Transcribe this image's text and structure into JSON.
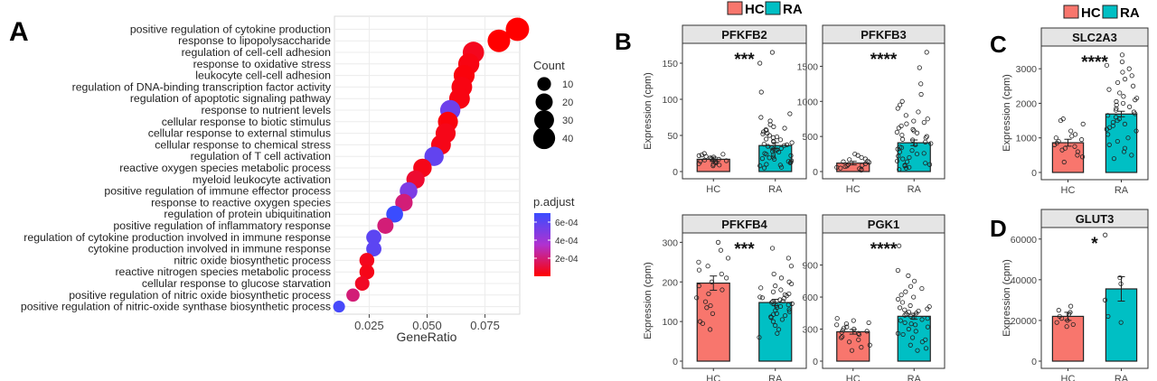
{
  "panel_labels": {
    "a": "A",
    "b": "B",
    "c": "C",
    "d": "D"
  },
  "legend_groups": {
    "hc_label": "HC",
    "ra_label": "RA",
    "hc_color": "#F8766D",
    "ra_color": "#00BFC4"
  },
  "chart_data": [
    {
      "type": "scatter",
      "panel": "A",
      "xlabel": "GeneRatio",
      "xlim": [
        0.01,
        0.09
      ],
      "x_ticks": [
        "0.025",
        "0.050",
        "0.075"
      ],
      "x_tick_values": [
        0.025,
        0.05,
        0.075
      ],
      "grid": true,
      "categories": [
        "positive regulation of cytokine production",
        "response to lipopolysaccharide",
        "regulation of cell-cell adhesion",
        "response to oxidative stress",
        "leukocyte cell-cell adhesion",
        "regulation of DNA-binding transcription factor activity",
        "regulation of apoptotic signaling pathway",
        "response to nutrient levels",
        "cellular response to biotic stimulus",
        "cellular response to external stimulus",
        "cellular response to chemical stress",
        "regulation of T cell activation",
        "reactive oxygen species metabolic process",
        "myeloid leukocyte activation",
        "positive regulation of immune effector process",
        "response to reactive oxygen species",
        "regulation of protein ubiquitination",
        "positive regulation of inflammatory response",
        "regulation of cytokine production involved in immune response",
        "cytokine production involved in immune response",
        "nitric oxide biosynthetic process",
        "reactive nitrogen species metabolic process",
        "cellular response to glucose starvation",
        "positive regulation of nitric oxide biosynthetic process",
        "positive regulation of nitric-oxide synthase biosynthetic process"
      ],
      "gene_ratio": [
        0.089,
        0.081,
        0.07,
        0.068,
        0.066,
        0.065,
        0.064,
        0.06,
        0.059,
        0.058,
        0.056,
        0.053,
        0.048,
        0.045,
        0.042,
        0.04,
        0.036,
        0.032,
        0.027,
        0.027,
        0.024,
        0.024,
        0.022,
        0.018,
        0.012
      ],
      "count": [
        47,
        43,
        37,
        36,
        35,
        34,
        34,
        32,
        31,
        31,
        30,
        28,
        25,
        24,
        22,
        21,
        19,
        17,
        14,
        14,
        13,
        13,
        12,
        9,
        6
      ],
      "p_adjust": [
        0.0,
        0.0,
        5e-05,
        3e-05,
        2e-05,
        3e-05,
        3e-05,
        0.00055,
        2e-05,
        4e-05,
        4e-05,
        0.00058,
        4e-05,
        8e-05,
        0.0005,
        0.0002,
        0.0007,
        0.0002,
        0.0006,
        0.0006,
        5e-05,
        4e-05,
        6e-05,
        0.0002,
        0.00066
      ],
      "size_legend": {
        "title": "Count",
        "values": [
          10,
          20,
          30,
          40
        ],
        "labels": [
          "10",
          "20",
          "30",
          "40"
        ]
      },
      "color_legend": {
        "title": "p.adjust",
        "ticks": [
          "6e-04",
          "4e-04",
          "2e-04"
        ],
        "tick_values": [
          0.0006,
          0.0004,
          0.0002
        ],
        "range": [
          0.0,
          0.0007
        ],
        "low_color": "#FF0000",
        "high_color": "#3A4CFF"
      },
      "legend_position": "right"
    },
    {
      "type": "bar",
      "panel": "B",
      "title": "PFKFB2",
      "ylabel": "Expression (cpm)",
      "categories": [
        "HC",
        "RA"
      ],
      "values": [
        17,
        36
      ],
      "errors": [
        3,
        4
      ],
      "ylim": [
        0,
        170
      ],
      "y_ticks": [
        0,
        50,
        100,
        150
      ],
      "significance": "***",
      "points": {
        "HC": [
          8,
          12,
          14,
          16,
          18,
          20,
          22,
          15,
          13,
          19,
          21,
          24,
          17,
          11,
          10,
          25,
          9,
          23,
          14,
          16
        ],
        "RA": [
          5,
          8,
          12,
          15,
          18,
          20,
          22,
          25,
          28,
          30,
          32,
          35,
          38,
          40,
          42,
          45,
          48,
          50,
          55,
          60,
          65,
          70,
          75,
          80,
          10,
          14,
          17,
          24,
          27,
          33,
          36,
          44,
          52,
          58,
          62,
          110,
          150,
          165,
          6,
          9,
          13,
          19,
          23,
          29,
          31,
          37,
          41,
          47,
          53,
          57
        ]
      }
    },
    {
      "type": "bar",
      "panel": "B",
      "title": "PFKFB3",
      "ylabel": "",
      "categories": [
        "HC",
        "RA"
      ],
      "values": [
        120,
        410
      ],
      "errors": [
        25,
        40
      ],
      "ylim": [
        0,
        1750
      ],
      "y_ticks": [
        0,
        500,
        1000,
        1500
      ],
      "significance": "****",
      "points": {
        "HC": [
          30,
          50,
          70,
          90,
          110,
          130,
          150,
          180,
          200,
          230,
          250,
          60,
          80,
          100,
          140,
          170,
          40,
          20
        ],
        "RA": [
          50,
          100,
          150,
          200,
          250,
          300,
          350,
          400,
          450,
          500,
          550,
          600,
          650,
          700,
          750,
          800,
          900,
          1000,
          1100,
          1250,
          1480,
          1700,
          80,
          120,
          180,
          220,
          280,
          320,
          380,
          420,
          480,
          520,
          580,
          620,
          680,
          720,
          30,
          60,
          90,
          140,
          260,
          340,
          460,
          560,
          850,
          950
        ]
      }
    },
    {
      "type": "bar",
      "panel": "B",
      "title": "PFKFB4",
      "ylabel": "Expression (cpm)",
      "categories": [
        "HC",
        "RA"
      ],
      "values": [
        197,
        148
      ],
      "errors": [
        18,
        8
      ],
      "ylim": [
        0,
        310
      ],
      "y_ticks": [
        0,
        100,
        200,
        300
      ],
      "significance": "***",
      "points": {
        "HC": [
          80,
          100,
          120,
          140,
          160,
          180,
          200,
          220,
          240,
          260,
          280,
          300,
          150,
          170,
          190,
          210,
          230,
          250,
          95,
          135
        ],
        "RA": [
          60,
          80,
          100,
          110,
          120,
          130,
          140,
          150,
          160,
          170,
          180,
          190,
          200,
          210,
          220,
          240,
          260,
          285,
          90,
          105,
          115,
          125,
          135,
          145,
          155,
          165,
          175,
          185,
          195,
          70,
          138,
          148,
          158,
          168,
          128,
          118,
          142,
          152,
          162,
          112
        ]
      }
    },
    {
      "type": "bar",
      "panel": "B",
      "title": "PGK1",
      "ylabel": "",
      "categories": [
        "HC",
        "RA"
      ],
      "values": [
        275,
        420
      ],
      "errors": [
        22,
        28
      ],
      "ylim": [
        0,
        1150
      ],
      "y_ticks": [
        0,
        300,
        600,
        900
      ],
      "significance": "****",
      "points": {
        "HC": [
          100,
          150,
          200,
          220,
          250,
          270,
          290,
          300,
          320,
          340,
          360,
          380,
          400,
          180,
          230,
          260,
          310,
          130,
          350,
          280
        ],
        "RA": [
          100,
          150,
          200,
          250,
          300,
          350,
          400,
          450,
          500,
          550,
          600,
          650,
          700,
          750,
          800,
          850,
          1080,
          180,
          220,
          280,
          320,
          380,
          420,
          480,
          520,
          580,
          620,
          680,
          120,
          260,
          340,
          440,
          460,
          360,
          390,
          410,
          430,
          470,
          490,
          510
        ]
      }
    },
    {
      "type": "bar",
      "panel": "C",
      "title": "SLC2A3",
      "ylabel": "Expression (cpm)",
      "categories": [
        "HC",
        "RA"
      ],
      "values": [
        860,
        1690
      ],
      "errors": [
        100,
        80
      ],
      "ylim": [
        0,
        3500
      ],
      "y_ticks": [
        0,
        1000,
        2000,
        3000
      ],
      "significance": "****",
      "points": {
        "HC": [
          300,
          450,
          600,
          700,
          800,
          900,
          1000,
          1100,
          1200,
          1400,
          1500,
          1550,
          650,
          850,
          950,
          1050,
          500,
          750
        ],
        "RA": [
          400,
          600,
          800,
          1000,
          1200,
          1400,
          1600,
          1800,
          2000,
          2200,
          2400,
          2600,
          2800,
          3000,
          3200,
          3400,
          700,
          900,
          1100,
          1300,
          1500,
          1700,
          1900,
          2100,
          2300,
          2500,
          1550,
          1650,
          1750,
          1850,
          1450,
          1350,
          1250,
          1950,
          2050,
          2150,
          500,
          2700,
          2900,
          3100
        ]
      }
    },
    {
      "type": "bar",
      "panel": "D",
      "title": "GLUT3",
      "ylabel": "Expression (cpm)",
      "categories": [
        "HC",
        "RA"
      ],
      "values": [
        22000,
        35500
      ],
      "errors": [
        2000,
        6000
      ],
      "ylim": [
        0,
        63000
      ],
      "y_ticks": [
        0,
        20000,
        40000,
        60000
      ],
      "significance": "*",
      "points": {
        "HC": [
          17000,
          19000,
          20000,
          21000,
          22000,
          23000,
          24000,
          25000,
          27000,
          18000
        ],
        "RA": [
          19000,
          22000,
          30000,
          38000,
          41000,
          62000
        ]
      }
    }
  ]
}
